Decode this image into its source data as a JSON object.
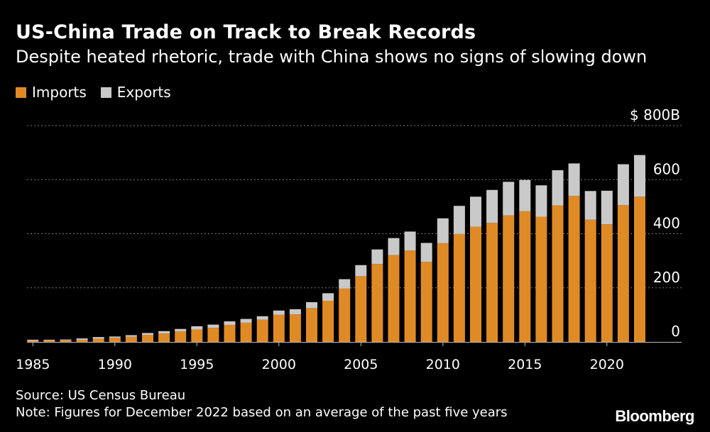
{
  "title": "US-China Trade on Track to Break Records",
  "subtitle": "Despite heated rhetoric, trade with China shows no signs of slowing down",
  "legend": {
    "imports_label": "Imports",
    "exports_label": "Exports"
  },
  "colors": {
    "imports": "#e08a25",
    "exports": "#c9c9c9",
    "background": "#000000",
    "grid": "#7a7a7a",
    "text": "#ffffff"
  },
  "footer": {
    "source": "Source: US Census Bureau",
    "note": "Note: Figures for December 2022 based on an average of the past five years",
    "brand": "Bloomberg"
  },
  "chart_data": {
    "type": "bar",
    "stacked": true,
    "title": "US-China Trade on Track to Break Records",
    "subtitle": "Despite heated rhetoric, trade with China shows no signs of slowing down",
    "xlabel": "",
    "ylabel": "",
    "ylim": [
      0,
      800
    ],
    "y_ticks": [
      {
        "value": 0,
        "label": "0"
      },
      {
        "value": 200,
        "label": "200"
      },
      {
        "value": 400,
        "label": "400"
      },
      {
        "value": 600,
        "label": "600"
      },
      {
        "value": 800,
        "label": "$ 800B"
      }
    ],
    "x_ticks": [
      "1985",
      "1990",
      "1995",
      "2000",
      "2005",
      "2010",
      "2015",
      "2020"
    ],
    "grid": true,
    "legend_position": "top-left",
    "categories": [
      1985,
      1986,
      1987,
      1988,
      1989,
      1990,
      1991,
      1992,
      1993,
      1994,
      1995,
      1996,
      1997,
      1998,
      1999,
      2000,
      2001,
      2002,
      2003,
      2004,
      2005,
      2006,
      2007,
      2008,
      2009,
      2010,
      2011,
      2012,
      2013,
      2014,
      2015,
      2016,
      2017,
      2018,
      2019,
      2020,
      2021,
      2022
    ],
    "series": [
      {
        "name": "Imports",
        "values": [
          4,
          5,
          6,
          8,
          12,
          15,
          19,
          26,
          31,
          39,
          46,
          52,
          63,
          71,
          82,
          100,
          102,
          125,
          152,
          197,
          243,
          288,
          321,
          338,
          296,
          365,
          399,
          426,
          440,
          468,
          483,
          463,
          505,
          540,
          452,
          435,
          506,
          537
        ]
      },
      {
        "name": "Exports",
        "values": [
          4,
          3,
          3,
          5,
          6,
          5,
          6,
          7,
          9,
          9,
          12,
          12,
          13,
          14,
          13,
          16,
          19,
          22,
          28,
          35,
          41,
          54,
          63,
          70,
          70,
          92,
          104,
          111,
          122,
          124,
          116,
          116,
          130,
          120,
          106,
          124,
          151,
          154
        ]
      }
    ]
  }
}
